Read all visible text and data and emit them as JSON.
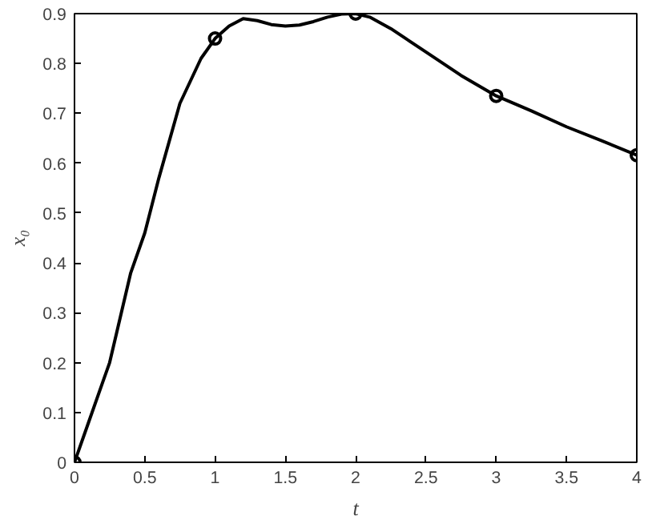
{
  "chart_data": {
    "type": "line",
    "xlabel": "t",
    "ylabel": "x₀",
    "xlim": [
      0,
      4
    ],
    "ylim": [
      0,
      0.9
    ],
    "xticks": [
      0,
      0.5,
      1,
      1.5,
      2,
      2.5,
      3,
      3.5,
      4
    ],
    "yticks": [
      0,
      0.1,
      0.2,
      0.3,
      0.4,
      0.5,
      0.6,
      0.7,
      0.8,
      0.9
    ],
    "grid": false,
    "series": [
      {
        "color": "#000000",
        "marker": "none",
        "x": [
          0,
          0.1,
          0.2,
          0.25,
          0.3,
          0.4,
          0.5,
          0.6,
          0.75,
          0.9,
          1,
          1.1,
          1.2,
          1.3,
          1.4,
          1.5,
          1.6,
          1.7,
          1.8,
          1.9,
          2,
          2.1,
          2.25,
          2.5,
          2.75,
          3,
          3.25,
          3.5,
          3.75,
          4
        ],
        "values": [
          0,
          0.08,
          0.16,
          0.2,
          0.26,
          0.38,
          0.46,
          0.57,
          0.72,
          0.81,
          0.85,
          0.875,
          0.89,
          0.886,
          0.878,
          0.875,
          0.877,
          0.884,
          0.893,
          0.899,
          0.9,
          0.893,
          0.87,
          0.823,
          0.776,
          0.735,
          0.705,
          0.673,
          0.645,
          0.616
        ]
      },
      {
        "type": "scatter",
        "color": "#000000",
        "marker": "circle",
        "x": [
          0,
          1,
          2,
          3,
          4
        ],
        "values": [
          0,
          0.85,
          0.9,
          0.735,
          0.616
        ]
      }
    ]
  }
}
